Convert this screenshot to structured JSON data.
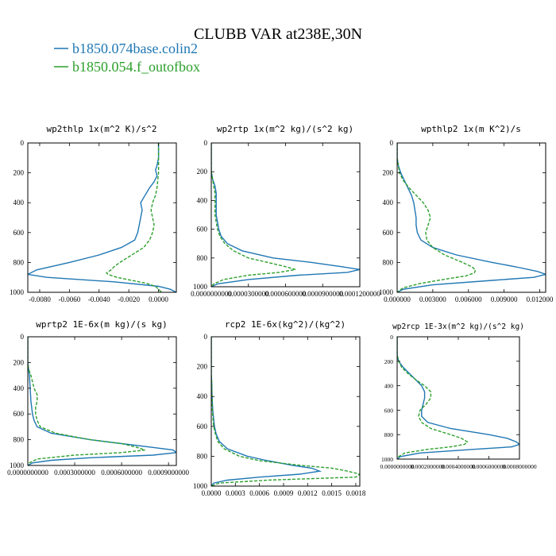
{
  "figure": {
    "title": "CLUBB VAR at238E,30N",
    "legend": [
      {
        "name": "b1850.074base.colin2",
        "color": "#1f77b4",
        "dash": "solid"
      },
      {
        "name": "b1850.054.f_outofbox",
        "color": "#2ca02c",
        "dash": "dashed"
      }
    ]
  },
  "chart_data": [
    {
      "type": "line",
      "title": "wp2thlp   1x(m^2 K)/s^2",
      "xlim": [
        -0.0088,
        0.0012
      ],
      "ylim": [
        1000,
        0
      ],
      "xticks": [
        -0.008,
        -0.006,
        -0.004,
        -0.002,
        0.0
      ],
      "xtick_labels": [
        "-0.0080",
        "-0.0060",
        "-0.0040",
        "-0.0020",
        "0.0000"
      ],
      "yticks": [
        0,
        200,
        400,
        600,
        800,
        1000
      ],
      "series": [
        {
          "name": "b1850.074base.colin2",
          "y": [
            0,
            100,
            150,
            180,
            220,
            260,
            300,
            350,
            400,
            450,
            500,
            550,
            600,
            650,
            700,
            750,
            800,
            850,
            880,
            900,
            930,
            960,
            980,
            1000
          ],
          "x": [
            0,
            0,
            -0.0001,
            -0.0002,
            -0.0001,
            -0.0003,
            -0.0006,
            -0.0009,
            -0.0012,
            -0.0011,
            -0.0012,
            -0.0013,
            -0.0014,
            -0.0016,
            -0.0025,
            -0.004,
            -0.006,
            -0.0082,
            -0.0088,
            -0.0075,
            -0.003,
            0.0,
            0.0008,
            0.0012
          ]
        },
        {
          "name": "b1850.054.f_outofbox",
          "y": [
            0,
            100,
            200,
            300,
            350,
            400,
            450,
            500,
            550,
            600,
            650,
            700,
            750,
            800,
            830,
            850,
            870,
            880,
            900,
            920,
            940,
            960,
            980,
            1000
          ],
          "x": [
            0,
            0,
            0,
            -0.0001,
            -0.0002,
            -0.0004,
            -0.0005,
            -0.0004,
            -0.0003,
            -0.0004,
            -0.0006,
            -0.001,
            -0.0018,
            -0.0026,
            -0.003,
            -0.0032,
            -0.0035,
            -0.0034,
            -0.0028,
            -0.0018,
            -0.0008,
            -0.0002,
            0.0,
            0.0002
          ]
        }
      ]
    },
    {
      "type": "line",
      "title": "wp2rtp   1x(m^2 kg)/(s^2 kg)",
      "xlim": [
        0,
        0.00012
      ],
      "ylim": [
        1000,
        0
      ],
      "xticks": [
        0,
        3e-05,
        6e-05,
        9e-05,
        0.00012
      ],
      "xtick_labels": [
        "0.0000000000",
        "0.0000300000",
        "0.0000600000",
        "0.0000900000",
        "0.0001200000"
      ],
      "yticks": [
        0,
        200,
        400,
        600,
        800,
        1000
      ],
      "series": [
        {
          "name": "b1850.074base.colin2",
          "y": [
            0,
            200,
            250,
            300,
            350,
            400,
            450,
            500,
            550,
            600,
            650,
            700,
            750,
            800,
            830,
            860,
            880,
            900,
            920,
            950,
            980,
            1000
          ],
          "x": [
            0,
            0,
            1e-06,
            3e-06,
            4e-06,
            4e-06,
            4e-06,
            4e-06,
            5e-06,
            6e-06,
            8e-06,
            1.3e-05,
            2.5e-05,
            5e-05,
            8e-05,
            0.000105,
            0.00012,
            0.00011,
            7e-05,
            3e-05,
            5e-06,
            0
          ]
        },
        {
          "name": "b1850.054.f_outofbox",
          "y": [
            0,
            200,
            250,
            300,
            350,
            400,
            450,
            500,
            550,
            600,
            650,
            700,
            750,
            800,
            830,
            860,
            880,
            900,
            920,
            950,
            980,
            1000
          ],
          "x": [
            0,
            0,
            1e-06,
            2e-06,
            3e-06,
            3e-06,
            3e-06,
            3e-06,
            4e-06,
            5e-06,
            7e-06,
            1.1e-05,
            1.8e-05,
            3e-05,
            4.5e-05,
            6e-05,
            6.8e-05,
            5.5e-05,
            3e-05,
            1e-05,
            2e-06,
            0
          ]
        }
      ]
    },
    {
      "type": "line",
      "title": "wpthlp2   1x(m K^2)/s",
      "xlim": [
        0,
        0.0125
      ],
      "ylim": [
        1000,
        0
      ],
      "xticks": [
        0,
        0.003,
        0.006,
        0.009,
        0.012
      ],
      "xtick_labels": [
        "0.000000",
        "0.003000",
        "0.006000",
        "0.009000",
        "0.012000"
      ],
      "yticks": [
        0,
        200,
        400,
        600,
        800,
        1000
      ],
      "series": [
        {
          "name": "b1850.074base.colin2",
          "y": [
            0,
            100,
            150,
            200,
            250,
            300,
            350,
            400,
            450,
            500,
            550,
            600,
            650,
            700,
            750,
            800,
            830,
            860,
            880,
            900,
            920,
            950,
            980,
            1000
          ],
          "x": [
            0,
            0,
            0.0001,
            0.0003,
            0.0006,
            0.0009,
            0.0012,
            0.0014,
            0.0015,
            0.0016,
            0.0016,
            0.0017,
            0.002,
            0.003,
            0.005,
            0.008,
            0.01,
            0.0118,
            0.0125,
            0.0115,
            0.008,
            0.003,
            0.0005,
            0
          ]
        },
        {
          "name": "b1850.054.f_outofbox",
          "y": [
            0,
            100,
            150,
            200,
            250,
            300,
            350,
            400,
            450,
            500,
            550,
            600,
            650,
            700,
            750,
            800,
            830,
            850,
            870,
            890,
            910,
            940,
            970,
            1000
          ],
          "x": [
            0,
            0,
            0.0001,
            0.0002,
            0.0005,
            0.001,
            0.0016,
            0.0022,
            0.0026,
            0.0028,
            0.0026,
            0.0024,
            0.0025,
            0.003,
            0.004,
            0.0055,
            0.0063,
            0.0066,
            0.0065,
            0.0058,
            0.0042,
            0.002,
            0.0005,
            0
          ]
        }
      ]
    },
    {
      "type": "line",
      "title": "wprtp2   1E-6x(m kg)/(s kg)",
      "xlim": [
        0,
        0.00095
      ],
      "ylim": [
        1000,
        0
      ],
      "xticks": [
        0,
        0.0003,
        0.0006,
        0.0009
      ],
      "xtick_labels": [
        "0.0000000000",
        "0.0003000000",
        "0.0006000000",
        "0.0009000000"
      ],
      "yticks": [
        0,
        200,
        400,
        600,
        800,
        1000
      ],
      "series": [
        {
          "name": "b1850.074base.colin2",
          "y": [
            0,
            200,
            250,
            300,
            400,
            500,
            600,
            650,
            700,
            750,
            800,
            830,
            860,
            880,
            900,
            920,
            940,
            960,
            980,
            1000
          ],
          "x": [
            0,
            0,
            5e-06,
            1e-05,
            1.5e-05,
            2e-05,
            3e-05,
            4e-05,
            6e-05,
            0.00015,
            0.0004,
            0.0006,
            0.0008,
            0.00093,
            0.00095,
            0.0008,
            0.0004,
            0.00015,
            3e-05,
            0
          ]
        },
        {
          "name": "b1850.054.f_outofbox",
          "y": [
            0,
            200,
            250,
            300,
            400,
            450,
            500,
            550,
            600,
            650,
            700,
            750,
            800,
            830,
            860,
            880,
            900,
            920,
            950,
            980,
            1000
          ],
          "x": [
            0,
            0,
            5e-06,
            2e-05,
            4e-05,
            6e-05,
            6e-05,
            5e-05,
            5e-05,
            6e-05,
            8e-05,
            0.00018,
            0.0004,
            0.0006,
            0.0007,
            0.00075,
            0.0006,
            0.0003,
            6e-05,
            1e-05,
            0
          ]
        }
      ]
    },
    {
      "type": "line",
      "title": "rcp2   1E-6x(kg^2)/(kg^2)",
      "xlim": [
        0,
        0.00185
      ],
      "ylim": [
        1000,
        0
      ],
      "xticks": [
        0,
        0.0003,
        0.0006,
        0.0009,
        0.0012,
        0.0015,
        0.0018
      ],
      "xtick_labels": [
        "0.0000",
        "0.0003",
        "0.0006",
        "0.0009",
        "0.0012",
        "0.0015",
        "0.0018"
      ],
      "yticks": [
        0,
        200,
        400,
        600,
        800,
        1000
      ],
      "series": [
        {
          "name": "b1850.074base.colin2",
          "y": [
            0,
            250,
            300,
            400,
            500,
            600,
            650,
            700,
            750,
            800,
            830,
            860,
            880,
            900,
            920,
            940,
            960,
            980,
            1000
          ],
          "x": [
            0,
            0,
            5e-06,
            1e-05,
            2e-05,
            4e-05,
            6e-05,
            0.0001,
            0.0002,
            0.00045,
            0.0007,
            0.001,
            0.00125,
            0.00135,
            0.0011,
            0.0006,
            0.0002,
            3e-05,
            0
          ]
        },
        {
          "name": "b1850.054.f_outofbox",
          "y": [
            0,
            250,
            300,
            400,
            500,
            600,
            650,
            700,
            750,
            800,
            830,
            860,
            880,
            900,
            920,
            940,
            960,
            980,
            1000
          ],
          "x": [
            0,
            0,
            5e-06,
            8e-06,
            1.5e-05,
            3e-05,
            5e-05,
            8e-05,
            0.00016,
            0.00035,
            0.0006,
            0.0011,
            0.0015,
            0.0017,
            0.00185,
            0.0018,
            0.0007,
            0.0001,
            0
          ]
        }
      ]
    },
    {
      "type": "line",
      "title": "wp2rcp   1E-3x(m^2 kg)/(s^2 kg)",
      "xlim": [
        0,
        0.0008
      ],
      "ylim": [
        1000,
        0
      ],
      "xticks": [
        0,
        0.0002,
        0.0004,
        0.0006,
        0.0008
      ],
      "xtick_labels": [
        "0.0000000000",
        "0.0002000000",
        "0.0004000000",
        "0.0006000000",
        "0.0008000000"
      ],
      "yticks": [
        0,
        200,
        400,
        600,
        800,
        1000
      ],
      "series": [
        {
          "name": "b1850.074base.colin2",
          "y": [
            0,
            150,
            200,
            250,
            300,
            350,
            400,
            450,
            500,
            550,
            600,
            650,
            700,
            750,
            800,
            830,
            860,
            880,
            900,
            920,
            950,
            980,
            1000
          ],
          "x": [
            0,
            0,
            1e-05,
            4e-05,
            8e-05,
            0.00012,
            0.00016,
            0.00018,
            0.00018,
            0.00017,
            0.00016,
            0.00016,
            0.0002,
            0.00035,
            0.0006,
            0.00072,
            0.00078,
            0.0008,
            0.00075,
            0.0005,
            0.00015,
            2e-05,
            0
          ]
        },
        {
          "name": "b1850.054.f_outofbox",
          "y": [
            0,
            150,
            200,
            250,
            300,
            350,
            400,
            450,
            500,
            550,
            600,
            650,
            700,
            750,
            800,
            830,
            860,
            880,
            900,
            920,
            950,
            980,
            1000
          ],
          "x": [
            0,
            0,
            1e-05,
            3e-05,
            7e-05,
            0.00012,
            0.00018,
            0.00022,
            0.00022,
            0.00019,
            0.00015,
            0.00014,
            0.00016,
            0.00022,
            0.00035,
            0.00042,
            0.00046,
            0.00044,
            0.00035,
            0.0002,
            5e-05,
            1e-05,
            0
          ]
        }
      ]
    }
  ]
}
